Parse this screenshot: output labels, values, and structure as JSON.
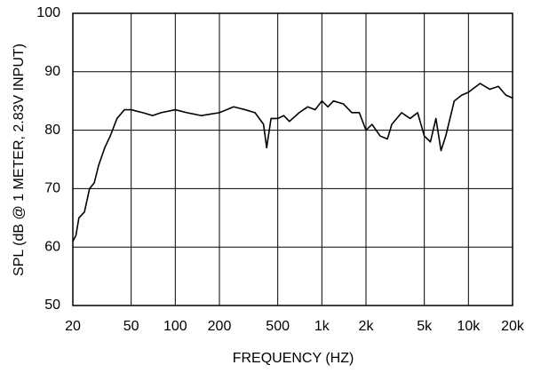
{
  "chart_data": {
    "type": "line",
    "x_label": "FREQUENCY  (HZ)",
    "y_label": "SPL (dB @ 1 METER, 2.83V INPUT)",
    "xscale": "log",
    "grid": true,
    "xlim": [
      20,
      20000
    ],
    "ylim": [
      50,
      100
    ],
    "xticks": [
      20,
      50,
      100,
      200,
      500,
      {
        "value": 1000,
        "label": "1k"
      },
      {
        "value": 2000,
        "label": "2k"
      },
      {
        "value": 5000,
        "label": "5k"
      },
      {
        "value": 10000,
        "label": "10k"
      },
      {
        "value": 20000,
        "label": "20k"
      }
    ],
    "yticks": [
      50,
      60,
      70,
      80,
      90,
      100
    ],
    "x": [
      20,
      21,
      22,
      24,
      26,
      28,
      30,
      33,
      36,
      40,
      45,
      50,
      60,
      70,
      80,
      100,
      120,
      150,
      200,
      250,
      300,
      350,
      400,
      420,
      450,
      500,
      550,
      600,
      700,
      800,
      900,
      1000,
      1100,
      1200,
      1400,
      1600,
      1800,
      2000,
      2200,
      2500,
      2800,
      3000,
      3500,
      4000,
      4500,
      5000,
      5500,
      6000,
      6500,
      7000,
      8000,
      9000,
      10000,
      12000,
      14000,
      16000,
      18000,
      20000
    ],
    "series": [
      {
        "color": "#000000",
        "values": [
          61,
          62,
          65,
          66,
          70,
          71,
          74,
          77,
          79,
          82,
          83.5,
          83.5,
          83,
          82.5,
          83,
          83.5,
          83,
          82.5,
          83,
          84,
          83.5,
          83,
          81,
          77,
          82,
          82,
          82.5,
          81.5,
          83,
          84,
          83.5,
          85,
          84,
          85,
          84.5,
          83,
          83,
          80,
          81,
          79,
          78.5,
          81,
          83,
          82,
          83,
          79,
          78,
          82,
          76.5,
          79,
          85,
          86,
          86.5,
          88,
          87,
          87.5,
          86,
          85.5
        ]
      }
    ]
  }
}
